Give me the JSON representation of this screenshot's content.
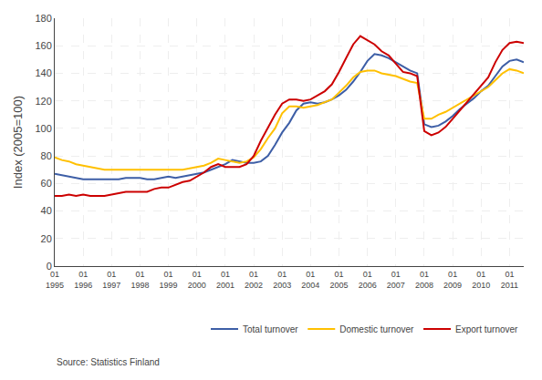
{
  "chart_data": {
    "type": "line",
    "title": "",
    "ylabel": "Index (2005=100)",
    "source": "Source: Statistics Finland",
    "categories": [
      "01\n1995",
      null,
      null,
      null,
      "01\n1996",
      null,
      null,
      null,
      "01\n1997",
      null,
      null,
      null,
      "01\n1998",
      null,
      null,
      null,
      "01\n1999",
      null,
      null,
      null,
      "01\n2000",
      null,
      null,
      null,
      "01\n2001",
      null,
      null,
      null,
      "01\n2002",
      null,
      null,
      null,
      "01\n2003",
      null,
      null,
      null,
      "01\n2004",
      null,
      null,
      null,
      "01\n2005",
      null,
      null,
      null,
      "01\n2006",
      null,
      null,
      null,
      "01\n2007",
      null,
      null,
      null,
      "01\n2008",
      null,
      null,
      null,
      "01\n2009",
      null,
      null,
      null,
      "01\n2010",
      null,
      null,
      null,
      "01\n2011",
      null,
      null
    ],
    "series": [
      {
        "name": "Total turnover",
        "color": "#3d5ea6",
        "values": [
          67,
          66,
          65,
          64,
          63,
          63,
          63,
          63,
          63,
          63,
          64,
          64,
          64,
          63,
          63,
          64,
          65,
          64,
          65,
          66,
          67,
          68,
          70,
          72,
          74,
          77,
          76,
          75,
          75,
          76,
          80,
          88,
          97,
          104,
          113,
          118,
          119,
          118,
          119,
          121,
          124,
          128,
          134,
          141,
          149,
          154,
          153,
          151,
          148,
          145,
          142,
          140,
          103,
          101,
          102,
          105,
          109,
          114,
          118,
          122,
          127,
          131,
          138,
          145,
          149,
          150,
          148
        ]
      },
      {
        "name": "Domestic turnover",
        "color": "#ffc000",
        "values": [
          79,
          77,
          76,
          74,
          73,
          72,
          71,
          70,
          70,
          70,
          70,
          70,
          70,
          70,
          70,
          70,
          70,
          70,
          70,
          71,
          72,
          73,
          75,
          78,
          77,
          76,
          75,
          76,
          79,
          85,
          93,
          100,
          111,
          116,
          116,
          115,
          116,
          117,
          119,
          121,
          126,
          131,
          137,
          141,
          142,
          142,
          140,
          139,
          138,
          136,
          134,
          133,
          107,
          107,
          110,
          112,
          115,
          118,
          121,
          124,
          127,
          130,
          135,
          140,
          143,
          142,
          140
        ]
      },
      {
        "name": "Export turnover",
        "color": "#cc0000",
        "values": [
          51,
          51,
          52,
          51,
          52,
          51,
          51,
          51,
          52,
          53,
          54,
          54,
          54,
          54,
          56,
          57,
          57,
          59,
          61,
          62,
          65,
          68,
          72,
          74,
          72,
          72,
          72,
          74,
          80,
          91,
          101,
          110,
          118,
          121,
          121,
          120,
          121,
          124,
          127,
          132,
          141,
          151,
          161,
          167,
          164,
          161,
          156,
          153,
          147,
          141,
          140,
          138,
          98,
          95,
          97,
          101,
          107,
          113,
          119,
          125,
          131,
          137,
          148,
          157,
          162,
          163,
          162
        ]
      }
    ],
    "ylim": [
      0,
      180
    ],
    "yticks": [
      0,
      20,
      40,
      60,
      80,
      100,
      120,
      140,
      160,
      180
    ],
    "grid": true,
    "legend": "bottom"
  }
}
